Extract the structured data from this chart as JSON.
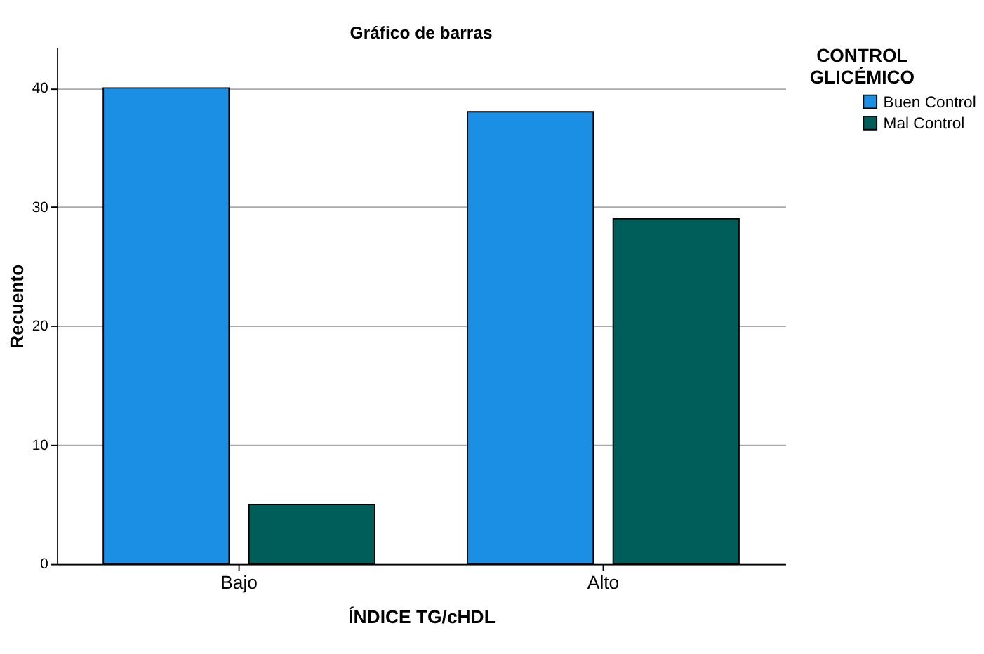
{
  "chart_data": {
    "type": "bar",
    "title": "Gráfico de barras",
    "xlabel": "ÍNDICE TG/cHDL",
    "ylabel": "Recuento",
    "legend_title": "CONTROL GLICÉMICO",
    "categories": [
      "Bajo",
      "Alto"
    ],
    "series": [
      {
        "name": "Buen Control",
        "color": "#1a8fe3",
        "values": [
          40,
          38
        ]
      },
      {
        "name": "Mal Control",
        "color": "#005e5a",
        "values": [
          5,
          29
        ]
      }
    ],
    "ylim": [
      0,
      43.4
    ],
    "yticks": [
      0,
      10,
      20,
      30,
      40
    ],
    "grid": "y",
    "legend": "top right"
  }
}
